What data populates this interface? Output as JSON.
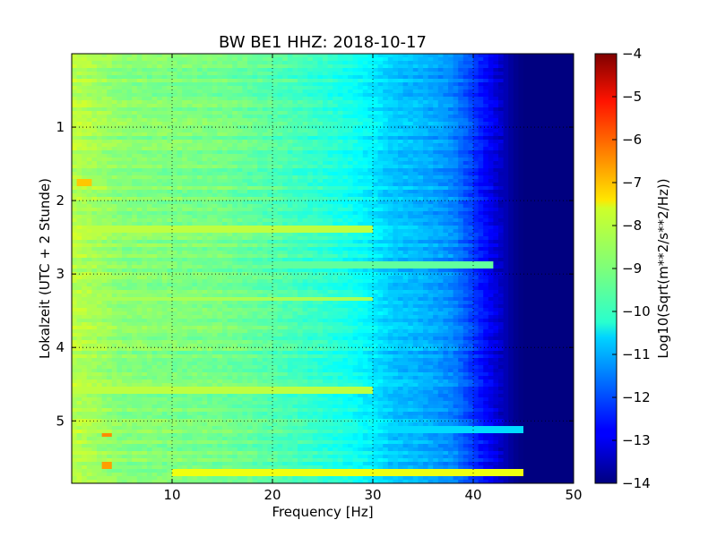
{
  "chart_data": {
    "type": "heatmap",
    "title": "BW BE1 HHZ: 2018-10-17",
    "xlabel": "Frequency [Hz]",
    "ylabel": "Lokalzeit (UTC + 2 Stunde)",
    "xlim": [
      0,
      50
    ],
    "ylim": [
      5.85,
      0.0
    ],
    "y_inverted": true,
    "x_ticks": [
      10,
      20,
      30,
      40,
      50
    ],
    "y_ticks": [
      1,
      2,
      3,
      4,
      5
    ],
    "grid": true,
    "grid_style": "dotted",
    "colormap": "jet",
    "colorbar": {
      "label": "Log10(Sqrt(m**2/s**2/Hz))",
      "range": [
        -14,
        -4
      ],
      "ticks": [
        -4,
        -5,
        -6,
        -7,
        -8,
        -9,
        -10,
        -11,
        -12,
        -13,
        -14
      ]
    },
    "spectral_profile": {
      "frequency_hz": [
        0,
        2,
        5,
        10,
        15,
        20,
        25,
        28,
        30,
        32,
        35,
        38,
        40,
        42,
        44,
        45,
        50
      ],
      "log10_amplitude": [
        -8.4,
        -8.6,
        -8.9,
        -9.0,
        -9.1,
        -9.4,
        -9.8,
        -10.1,
        -10.4,
        -10.8,
        -11.0,
        -11.4,
        -12.2,
        -13.0,
        -13.8,
        -14.0,
        -14.0
      ]
    },
    "features": [
      {
        "description": "strong band",
        "hour": 5.7,
        "freq_range_hz": [
          10,
          45
        ],
        "log10_amplitude": -7.9
      },
      {
        "description": "band",
        "hour": 5.12,
        "freq_range_hz": [
          30,
          45
        ],
        "log10_amplitude": -10.6
      },
      {
        "description": "band",
        "hour": 2.88,
        "freq_range_hz": [
          20,
          42
        ],
        "log10_amplitude": -9.3
      },
      {
        "description": "band",
        "hour": 2.38,
        "freq_range_hz": [
          0,
          30
        ],
        "log10_amplitude": -8.4
      },
      {
        "description": "band",
        "hour": 4.58,
        "freq_range_hz": [
          0,
          30
        ],
        "log10_amplitude": -8.4
      },
      {
        "description": "band",
        "hour": 3.35,
        "freq_range_hz": [
          0,
          30
        ],
        "log10_amplitude": -8.6
      },
      {
        "description": "spot",
        "hour": 1.75,
        "freq_range_hz": [
          0.5,
          2
        ],
        "log10_amplitude": -7.2
      },
      {
        "description": "spot",
        "hour": 5.2,
        "freq_range_hz": [
          3,
          4
        ],
        "log10_amplitude": -6.6
      },
      {
        "description": "spot",
        "hour": 5.6,
        "freq_range_hz": [
          3,
          4
        ],
        "log10_amplitude": -6.8
      }
    ]
  }
}
